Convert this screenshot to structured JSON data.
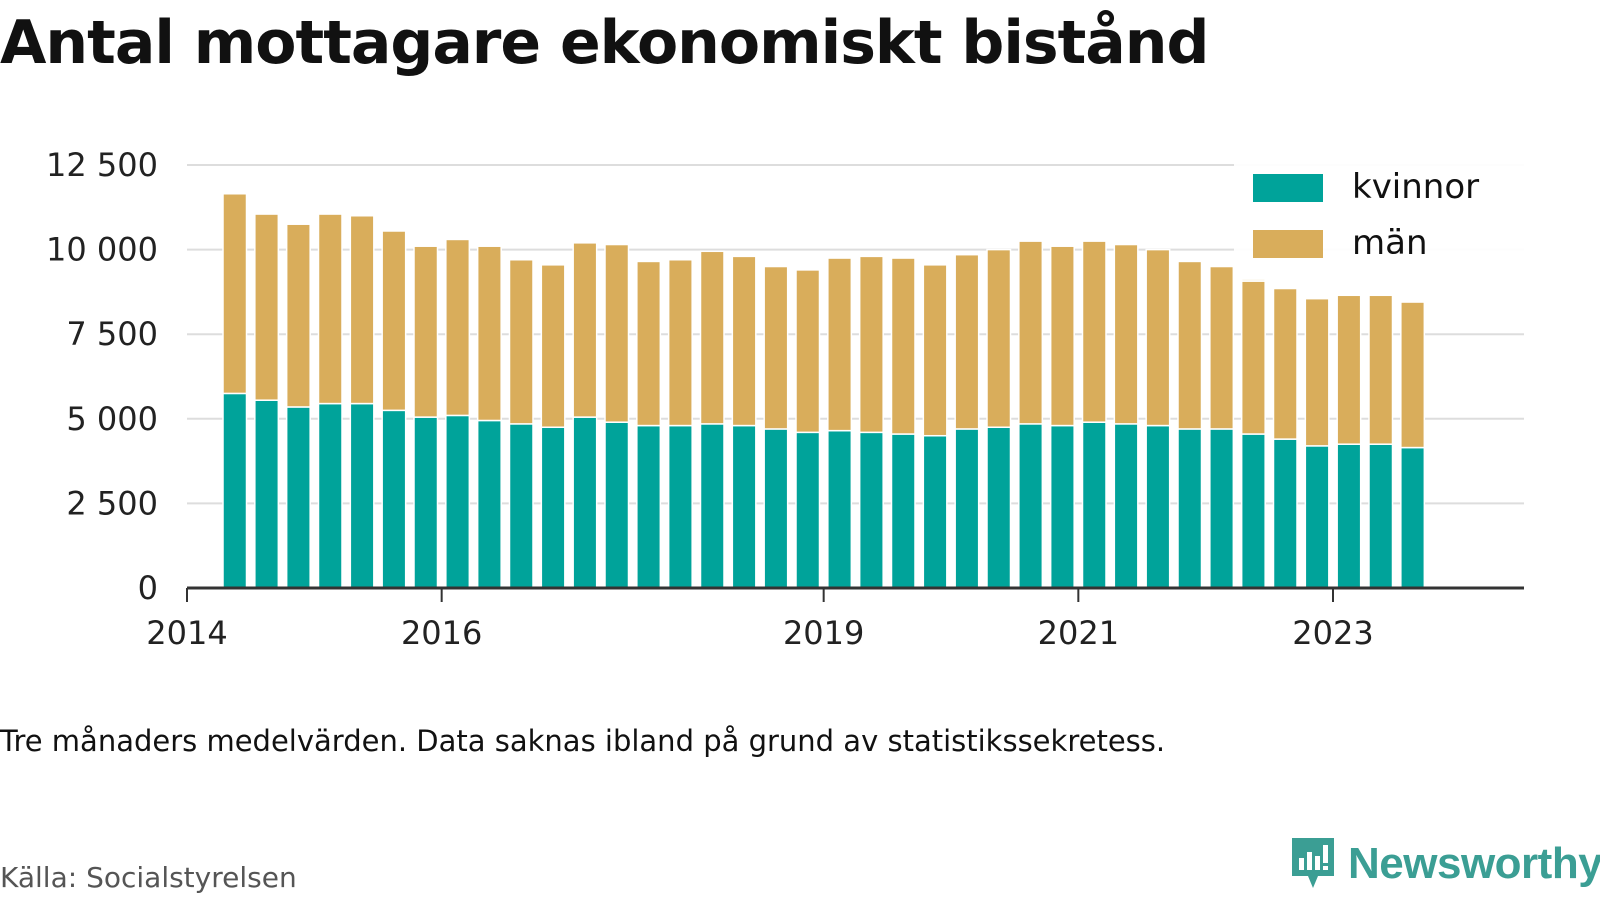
{
  "title": "Antal mottagare ekonomiskt bistånd",
  "note": "Tre månaders medelvärden. Data saknas ibland på grund av statistikssekretess.",
  "source": "Källa: Socialstyrelsen",
  "brand": "Newsworthy",
  "colors": {
    "kvinnor": "#00a39a",
    "man": "#d9ad5b",
    "grid": "#dddddd",
    "axis": "#333333",
    "brand": "#3b9e94"
  },
  "chart_data": {
    "type": "bar",
    "stacked": true,
    "ylim": [
      0,
      12500
    ],
    "yticks": [
      0,
      2500,
      5000,
      7500,
      10000,
      12500
    ],
    "ytick_labels": [
      "0",
      "2 500",
      "5 000",
      "7 500",
      "10 000",
      "12 500"
    ],
    "xlim": [
      "2014-01",
      "2024-07"
    ],
    "xticks": [
      "2014",
      "2016",
      "2019",
      "2021",
      "2023"
    ],
    "grid": true,
    "legend_position": "top-right",
    "categories": [
      "2014-Q2",
      "2014-Q3",
      "2014-Q4",
      "2015-Q1",
      "2015-Q2",
      "2015-Q3",
      "2015-Q4",
      "2016-Q1",
      "2016-Q2",
      "2016-Q3",
      "2016-Q4",
      "2017-Q1",
      "2017-Q2",
      "2017-Q3",
      "2017-Q4",
      "2018-Q1",
      "2018-Q2",
      "2018-Q3",
      "2018-Q4",
      "2019-Q1",
      "2019-Q2",
      "2019-Q3",
      "2019-Q4",
      "2020-Q1",
      "2020-Q2",
      "2020-Q3",
      "2020-Q4",
      "2021-Q1",
      "2021-Q2",
      "2021-Q3",
      "2021-Q4",
      "2022-Q1",
      "2022-Q2",
      "2022-Q3",
      "2022-Q4",
      "2023-Q1",
      "2023-Q2",
      "2023-Q3"
    ],
    "series": [
      {
        "name": "kvinnor",
        "values": [
          5750,
          5550,
          5350,
          5450,
          5450,
          5250,
          5050,
          5100,
          4950,
          4850,
          4750,
          5050,
          4900,
          4800,
          4800,
          4850,
          4800,
          4700,
          4600,
          4650,
          4600,
          4550,
          4500,
          4700,
          4750,
          4850,
          4800,
          4900,
          4850,
          4800,
          4700,
          4700,
          4550,
          4400,
          4200,
          4250,
          4250,
          4150
        ]
      },
      {
        "name": "män",
        "values": [
          5900,
          5500,
          5400,
          5600,
          5550,
          5300,
          5050,
          5200,
          5150,
          4850,
          4800,
          5150,
          5250,
          4850,
          4900,
          5100,
          5000,
          4800,
          4800,
          5100,
          5200,
          5200,
          5050,
          5150,
          5250,
          5400,
          5300,
          5350,
          5300,
          5200,
          4950,
          4800,
          4600,
          4450,
          4350,
          4400,
          4400,
          4300
        ]
      }
    ]
  }
}
